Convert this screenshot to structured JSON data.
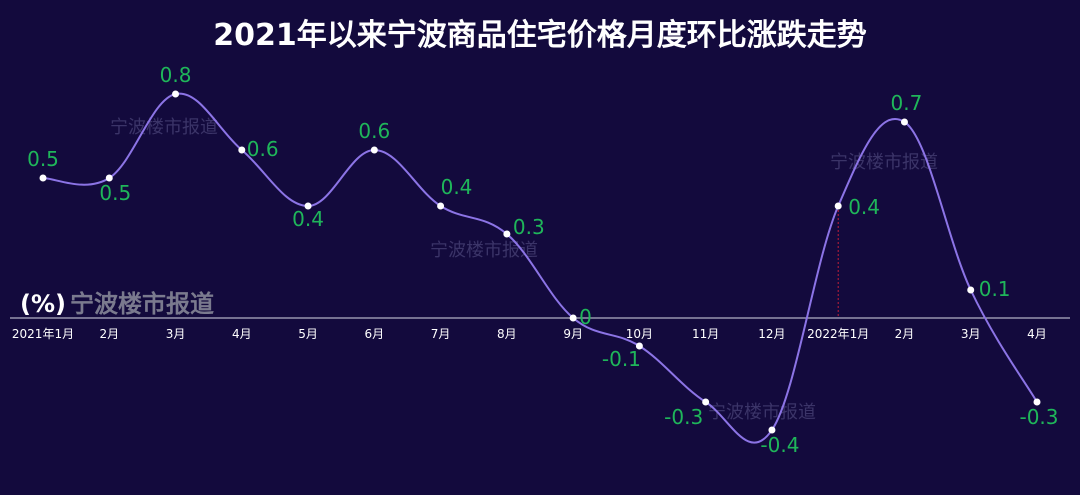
{
  "title": "2021年以来宁波商品住宅价格月度环比涨跌走势",
  "unit_label": "(%)",
  "source_label": "宁波楼市报道",
  "watermark_text": "宁波楼市报道",
  "colors": {
    "background": "#130a3d",
    "line": "#8c74e6",
    "point": "#ffffff",
    "data_label": "#1fb65a",
    "axis": "#d9d9e6",
    "marker_line": "#c0203a"
  },
  "chart_data": {
    "type": "line",
    "title": "2021年以来宁波商品住宅价格月度环比涨跌走势",
    "ylabel": "(%)",
    "xlabel": "",
    "smooth": true,
    "grid": false,
    "legend": "none",
    "categories": [
      "2021年1月",
      "2月",
      "3月",
      "4月",
      "5月",
      "6月",
      "7月",
      "8月",
      "9月",
      "10月",
      "11月",
      "12月",
      "2022年1月",
      "2月",
      "3月",
      "4月"
    ],
    "series": [
      {
        "values": [
          0.5,
          0.5,
          0.8,
          0.6,
          0.4,
          0.6,
          0.4,
          0.3,
          0,
          -0.1,
          -0.3,
          -0.4,
          0.4,
          0.7,
          0.1,
          -0.3
        ]
      }
    ],
    "data_labels": [
      "0.5",
      "0.5",
      "0.8",
      "0.6",
      "0.4",
      "0.6",
      "0.4",
      "0.3",
      "0",
      "-0.1",
      "-0.3",
      "-0.4",
      "0.4",
      "0.7",
      "0.1",
      "-0.3"
    ],
    "ylim": [
      -0.4,
      0.8
    ]
  }
}
